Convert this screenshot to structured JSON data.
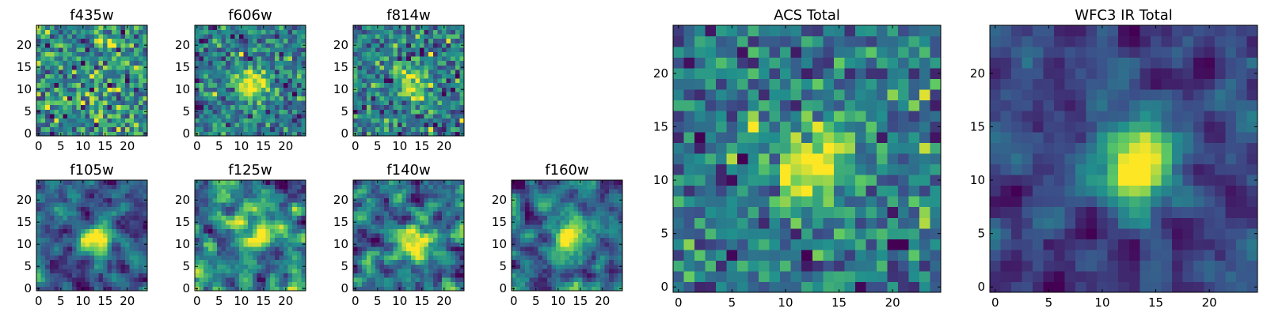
{
  "figure": {
    "description_colormap": "viridis",
    "colormap_stops": [
      "#440154",
      "#3b528b",
      "#21908d",
      "#5dc963",
      "#fde725"
    ]
  },
  "chart_data": [
    {
      "type": "heatmap",
      "title": "f435w",
      "grid": [
        25,
        25
      ],
      "xlim": [
        -0.5,
        24.5
      ],
      "ylim": [
        -0.5,
        24.5
      ],
      "xticks": [
        0,
        5,
        10,
        15,
        20
      ],
      "yticks": [
        0,
        5,
        10,
        15,
        20
      ],
      "source_center": null,
      "source_strength": 0.0,
      "noise": 0.55,
      "smooth": 0,
      "seed": 11
    },
    {
      "type": "heatmap",
      "title": "f606w",
      "grid": [
        25,
        25
      ],
      "xlim": [
        -0.5,
        24.5
      ],
      "ylim": [
        -0.5,
        24.5
      ],
      "xticks": [
        0,
        5,
        10,
        15,
        20
      ],
      "yticks": [
        0,
        5,
        10,
        15,
        20
      ],
      "source_center": [
        12.5,
        11
      ],
      "source_strength": 0.55,
      "noise": 0.5,
      "smooth": 0,
      "seed": 23
    },
    {
      "type": "heatmap",
      "title": "f814w",
      "grid": [
        25,
        25
      ],
      "xlim": [
        -0.5,
        24.5
      ],
      "ylim": [
        -0.5,
        24.5
      ],
      "xticks": [
        0,
        5,
        10,
        15,
        20
      ],
      "yticks": [
        0,
        5,
        10,
        15,
        20
      ],
      "source_center": [
        13,
        11.5
      ],
      "source_strength": 0.45,
      "noise": 0.55,
      "smooth": 0,
      "seed": 37
    },
    {
      "type": "heatmap",
      "title": "f105w",
      "grid": [
        25,
        25
      ],
      "xlim": [
        -0.5,
        24.5
      ],
      "ylim": [
        -0.5,
        24.5
      ],
      "xticks": [
        0,
        5,
        10,
        15,
        20
      ],
      "yticks": [
        0,
        5,
        10,
        15,
        20
      ],
      "source_center": [
        13,
        11
      ],
      "source_strength": 0.6,
      "noise": 0.5,
      "smooth": 1,
      "seed": 41
    },
    {
      "type": "heatmap",
      "title": "f125w",
      "grid": [
        25,
        25
      ],
      "xlim": [
        -0.5,
        24.5
      ],
      "ylim": [
        -0.5,
        24.5
      ],
      "xticks": [
        0,
        5,
        10,
        15,
        20
      ],
      "yticks": [
        0,
        5,
        10,
        15,
        20
      ],
      "source_center": [
        14,
        11
      ],
      "source_strength": 0.35,
      "noise": 0.5,
      "smooth": 1,
      "seed": 53
    },
    {
      "type": "heatmap",
      "title": "f140w",
      "grid": [
        25,
        25
      ],
      "xlim": [
        -0.5,
        24.5
      ],
      "ylim": [
        -0.5,
        24.5
      ],
      "xticks": [
        0,
        5,
        10,
        15,
        20
      ],
      "yticks": [
        0,
        5,
        10,
        15,
        20
      ],
      "source_center": [
        13,
        10
      ],
      "source_strength": 0.45,
      "noise": 0.5,
      "smooth": 1,
      "seed": 67
    },
    {
      "type": "heatmap",
      "title": "f160w",
      "grid": [
        25,
        25
      ],
      "xlim": [
        -0.5,
        24.5
      ],
      "ylim": [
        -0.5,
        24.5
      ],
      "xticks": [
        0,
        5,
        10,
        15,
        20
      ],
      "yticks": [
        0,
        5,
        10,
        15,
        20
      ],
      "source_center": [
        12.5,
        12
      ],
      "source_strength": 0.6,
      "noise": 0.5,
      "smooth": 1,
      "seed": 79
    },
    {
      "type": "heatmap",
      "title": "ACS Total",
      "grid": [
        25,
        25
      ],
      "xlim": [
        -0.5,
        24.5
      ],
      "ylim": [
        -0.5,
        24.5
      ],
      "xticks": [
        0,
        5,
        10,
        15,
        20
      ],
      "yticks": [
        0,
        5,
        10,
        15,
        20
      ],
      "source_center": [
        12.5,
        11.5
      ],
      "source_strength": 0.6,
      "noise": 0.45,
      "smooth": 0,
      "seed": 97
    },
    {
      "type": "heatmap",
      "title": "WFC3 IR Total",
      "grid": [
        25,
        25
      ],
      "xlim": [
        -0.5,
        24.5
      ],
      "ylim": [
        -0.5,
        24.5
      ],
      "xticks": [
        0,
        5,
        10,
        15,
        20
      ],
      "yticks": [
        0,
        5,
        10,
        15,
        20
      ],
      "source_center": [
        13,
        11.5
      ],
      "source_strength": 0.75,
      "noise": 0.4,
      "smooth": 1,
      "seed": 113
    }
  ]
}
